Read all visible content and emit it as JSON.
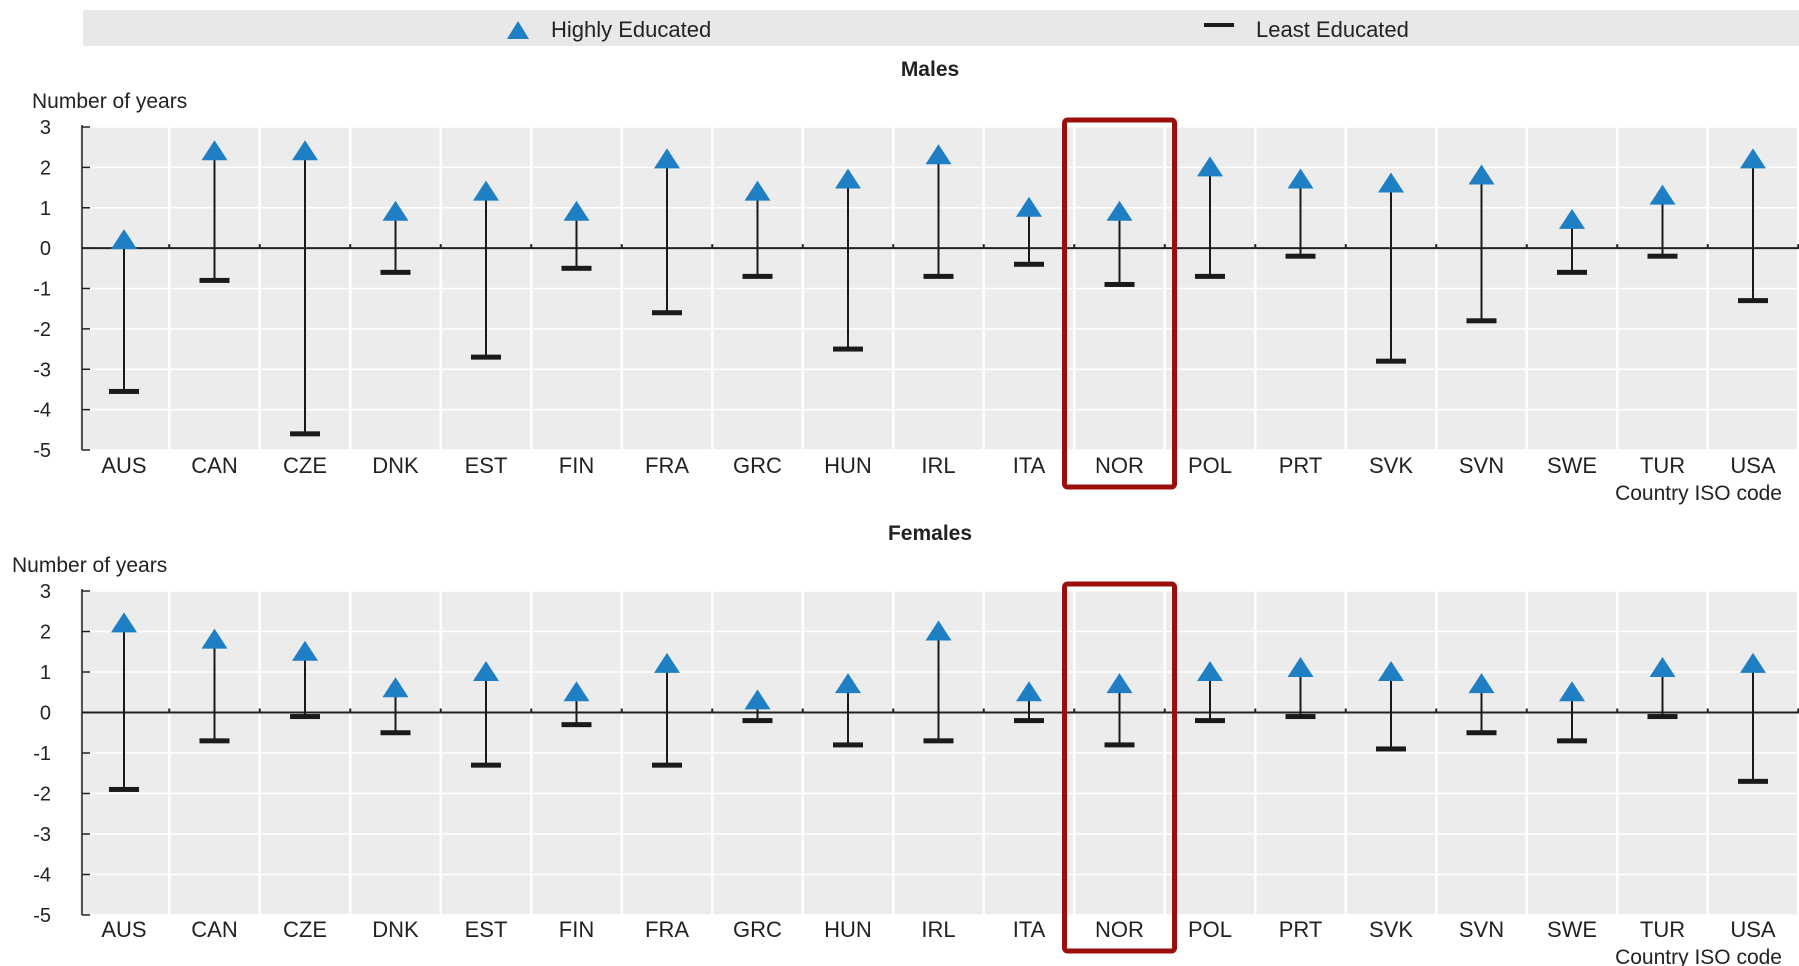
{
  "legend": {
    "high_label": "Highly Educated",
    "low_label": "Least Educated"
  },
  "colors": {
    "high_marker": "#1f7fc4",
    "low_marker": "#1a1a1a",
    "highlight_box": "#9b0e0e",
    "panel_bg": "#ececec",
    "legend_bg": "#e8e8e8"
  },
  "chart_data": [
    {
      "type": "scatter",
      "title": "Males",
      "ylabel": "Number of years",
      "xlabel": "Country ISO code",
      "ylim": [
        -5,
        3
      ],
      "yticks": [
        3,
        2,
        1,
        0,
        -1,
        -2,
        -3,
        -4,
        -5
      ],
      "grid": true,
      "highlight": "NOR",
      "categories": [
        "AUS",
        "CAN",
        "CZE",
        "DNK",
        "EST",
        "FIN",
        "FRA",
        "GRC",
        "HUN",
        "IRL",
        "ITA",
        "NOR",
        "POL",
        "PRT",
        "SVK",
        "SVN",
        "SWE",
        "TUR",
        "USA"
      ],
      "series": [
        {
          "name": "Highly Educated",
          "values": [
            0.15,
            2.35,
            2.35,
            0.85,
            1.35,
            0.85,
            2.15,
            1.35,
            1.65,
            2.25,
            0.95,
            0.85,
            1.95,
            1.65,
            1.55,
            1.75,
            0.65,
            1.25,
            2.15
          ]
        },
        {
          "name": "Least Educated",
          "values": [
            -3.55,
            -0.8,
            -4.6,
            -0.6,
            -2.7,
            -0.5,
            -1.6,
            -0.7,
            -2.5,
            -0.7,
            -0.4,
            -0.9,
            -0.7,
            -0.2,
            -2.8,
            -1.8,
            -0.6,
            -0.2,
            -1.3
          ]
        }
      ]
    },
    {
      "type": "scatter",
      "title": "Females",
      "ylabel": "Number of years",
      "xlabel": "Country ISO code",
      "ylim": [
        -5,
        3
      ],
      "yticks": [
        3,
        2,
        1,
        0,
        -1,
        -2,
        -3,
        -4,
        -5
      ],
      "grid": true,
      "highlight": "NOR",
      "categories": [
        "AUS",
        "CAN",
        "CZE",
        "DNK",
        "EST",
        "FIN",
        "FRA",
        "GRC",
        "HUN",
        "IRL",
        "ITA",
        "NOR",
        "POL",
        "PRT",
        "SVK",
        "SVN",
        "SWE",
        "TUR",
        "USA"
      ],
      "series": [
        {
          "name": "Highly Educated",
          "values": [
            2.15,
            1.75,
            1.45,
            0.55,
            0.95,
            0.45,
            1.15,
            0.25,
            0.65,
            1.95,
            0.45,
            0.65,
            0.95,
            1.05,
            0.95,
            0.65,
            0.45,
            1.05,
            1.15
          ]
        },
        {
          "name": "Least Educated",
          "values": [
            -1.9,
            -0.7,
            -0.1,
            -0.5,
            -1.3,
            -0.3,
            -1.3,
            -0.2,
            -0.8,
            -0.7,
            -0.2,
            -0.8,
            -0.2,
            -0.1,
            -0.9,
            -0.5,
            -0.7,
            -0.1,
            -1.7
          ]
        }
      ]
    }
  ]
}
